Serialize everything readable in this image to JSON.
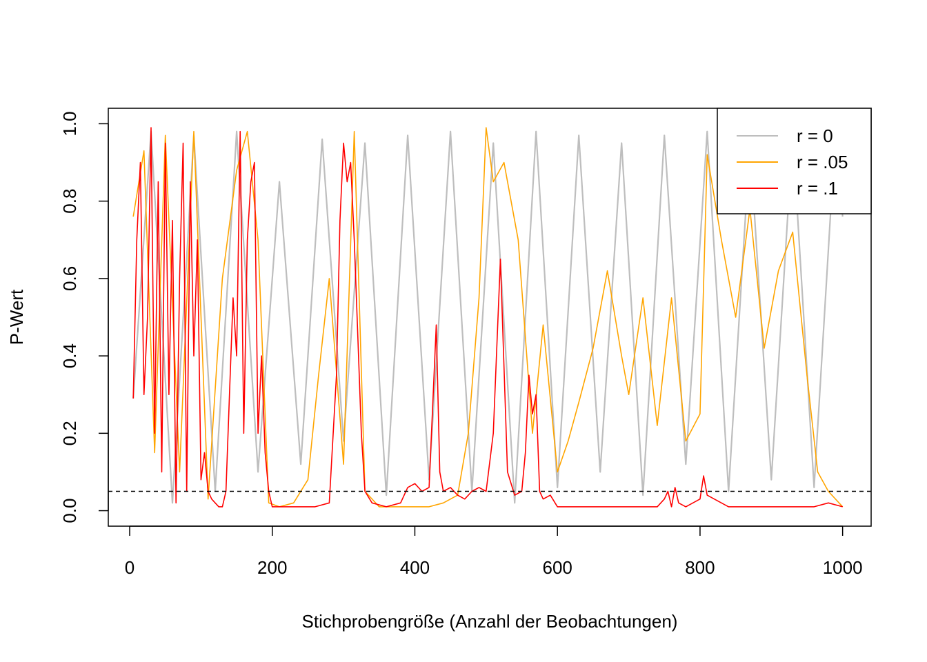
{
  "chart_data": {
    "type": "line",
    "xlabel": "Stichprobengröße (Anzahl der Beobachtungen)",
    "ylabel": "P-Wert",
    "xlim": [
      -30,
      1040
    ],
    "ylim": [
      -0.04,
      1.04
    ],
    "x_ticks": [
      "0",
      "200",
      "400",
      "600",
      "800",
      "1000"
    ],
    "y_ticks": [
      "0.0",
      "0.2",
      "0.4",
      "0.6",
      "0.8",
      "1.0"
    ],
    "reference_line": {
      "y": 0.05,
      "style": "dashed",
      "color": "#000000"
    },
    "legend": {
      "position": "top-right"
    },
    "grid": false,
    "series": [
      {
        "name": "r = 0",
        "color": "#BEBEBE",
        "x": [
          5,
          30,
          60,
          90,
          120,
          150,
          180,
          210,
          240,
          270,
          300,
          330,
          360,
          390,
          420,
          450,
          480,
          510,
          540,
          570,
          600,
          630,
          660,
          690,
          720,
          750,
          780,
          810,
          840,
          870,
          900,
          930,
          960,
          990,
          1000
        ],
        "values": [
          0.29,
          0.98,
          0.02,
          0.97,
          0.05,
          0.98,
          0.1,
          0.85,
          0.12,
          0.96,
          0.18,
          0.95,
          0.04,
          0.97,
          0.08,
          0.98,
          0.05,
          0.95,
          0.02,
          0.98,
          0.06,
          0.97,
          0.1,
          0.95,
          0.04,
          0.97,
          0.12,
          0.98,
          0.05,
          0.95,
          0.08,
          0.97,
          0.06,
          0.98,
          0.76
        ]
      },
      {
        "name": "r = .05",
        "color": "#FFA500",
        "x": [
          5,
          20,
          35,
          50,
          70,
          90,
          110,
          130,
          150,
          165,
          180,
          195,
          210,
          230,
          250,
          265,
          280,
          300,
          315,
          330,
          350,
          380,
          400,
          420,
          440,
          460,
          475,
          490,
          500,
          510,
          525,
          545,
          565,
          580,
          600,
          615,
          630,
          650,
          670,
          690,
          700,
          720,
          740,
          760,
          780,
          800,
          810,
          830,
          850,
          870,
          890,
          910,
          930,
          950,
          965,
          980,
          1000
        ],
        "values": [
          0.76,
          0.93,
          0.15,
          0.97,
          0.1,
          0.98,
          0.03,
          0.6,
          0.88,
          0.98,
          0.7,
          0.02,
          0.01,
          0.02,
          0.08,
          0.35,
          0.6,
          0.12,
          0.98,
          0.05,
          0.01,
          0.01,
          0.01,
          0.01,
          0.02,
          0.04,
          0.2,
          0.55,
          0.99,
          0.85,
          0.9,
          0.7,
          0.2,
          0.48,
          0.1,
          0.18,
          0.28,
          0.42,
          0.62,
          0.4,
          0.3,
          0.55,
          0.22,
          0.55,
          0.18,
          0.25,
          0.92,
          0.7,
          0.5,
          0.78,
          0.42,
          0.62,
          0.72,
          0.35,
          0.1,
          0.05,
          0.01
        ]
      },
      {
        "name": "r = .1",
        "color": "#FF0000",
        "x": [
          5,
          10,
          15,
          20,
          25,
          30,
          35,
          40,
          45,
          50,
          55,
          60,
          65,
          70,
          75,
          80,
          85,
          90,
          95,
          100,
          105,
          110,
          115,
          120,
          125,
          130,
          135,
          140,
          145,
          150,
          155,
          160,
          165,
          170,
          175,
          180,
          185,
          190,
          195,
          200,
          220,
          240,
          260,
          280,
          290,
          295,
          300,
          305,
          310,
          315,
          320,
          325,
          330,
          340,
          360,
          380,
          390,
          400,
          410,
          420,
          430,
          435,
          440,
          450,
          460,
          470,
          480,
          490,
          500,
          510,
          520,
          530,
          540,
          550,
          555,
          560,
          565,
          570,
          575,
          580,
          590,
          600,
          650,
          700,
          740,
          750,
          755,
          760,
          765,
          770,
          780,
          790,
          800,
          805,
          810,
          820,
          840,
          860,
          880,
          900,
          920,
          940,
          960,
          980,
          1000
        ],
        "values": [
          0.29,
          0.7,
          0.9,
          0.3,
          0.5,
          0.99,
          0.2,
          0.85,
          0.1,
          0.95,
          0.3,
          0.75,
          0.02,
          0.6,
          0.95,
          0.05,
          0.85,
          0.4,
          0.7,
          0.08,
          0.15,
          0.05,
          0.03,
          0.02,
          0.01,
          0.01,
          0.05,
          0.3,
          0.55,
          0.4,
          0.98,
          0.2,
          0.7,
          0.85,
          0.9,
          0.2,
          0.4,
          0.15,
          0.05,
          0.01,
          0.01,
          0.01,
          0.01,
          0.02,
          0.35,
          0.75,
          0.95,
          0.85,
          0.9,
          0.7,
          0.45,
          0.2,
          0.05,
          0.02,
          0.01,
          0.02,
          0.06,
          0.07,
          0.05,
          0.06,
          0.48,
          0.1,
          0.05,
          0.06,
          0.04,
          0.03,
          0.05,
          0.06,
          0.05,
          0.2,
          0.65,
          0.1,
          0.04,
          0.05,
          0.15,
          0.35,
          0.25,
          0.3,
          0.05,
          0.03,
          0.04,
          0.01,
          0.01,
          0.01,
          0.01,
          0.03,
          0.05,
          0.01,
          0.06,
          0.02,
          0.01,
          0.02,
          0.03,
          0.09,
          0.04,
          0.03,
          0.01,
          0.01,
          0.01,
          0.01,
          0.01,
          0.01,
          0.01,
          0.02,
          0.01
        ]
      }
    ]
  }
}
